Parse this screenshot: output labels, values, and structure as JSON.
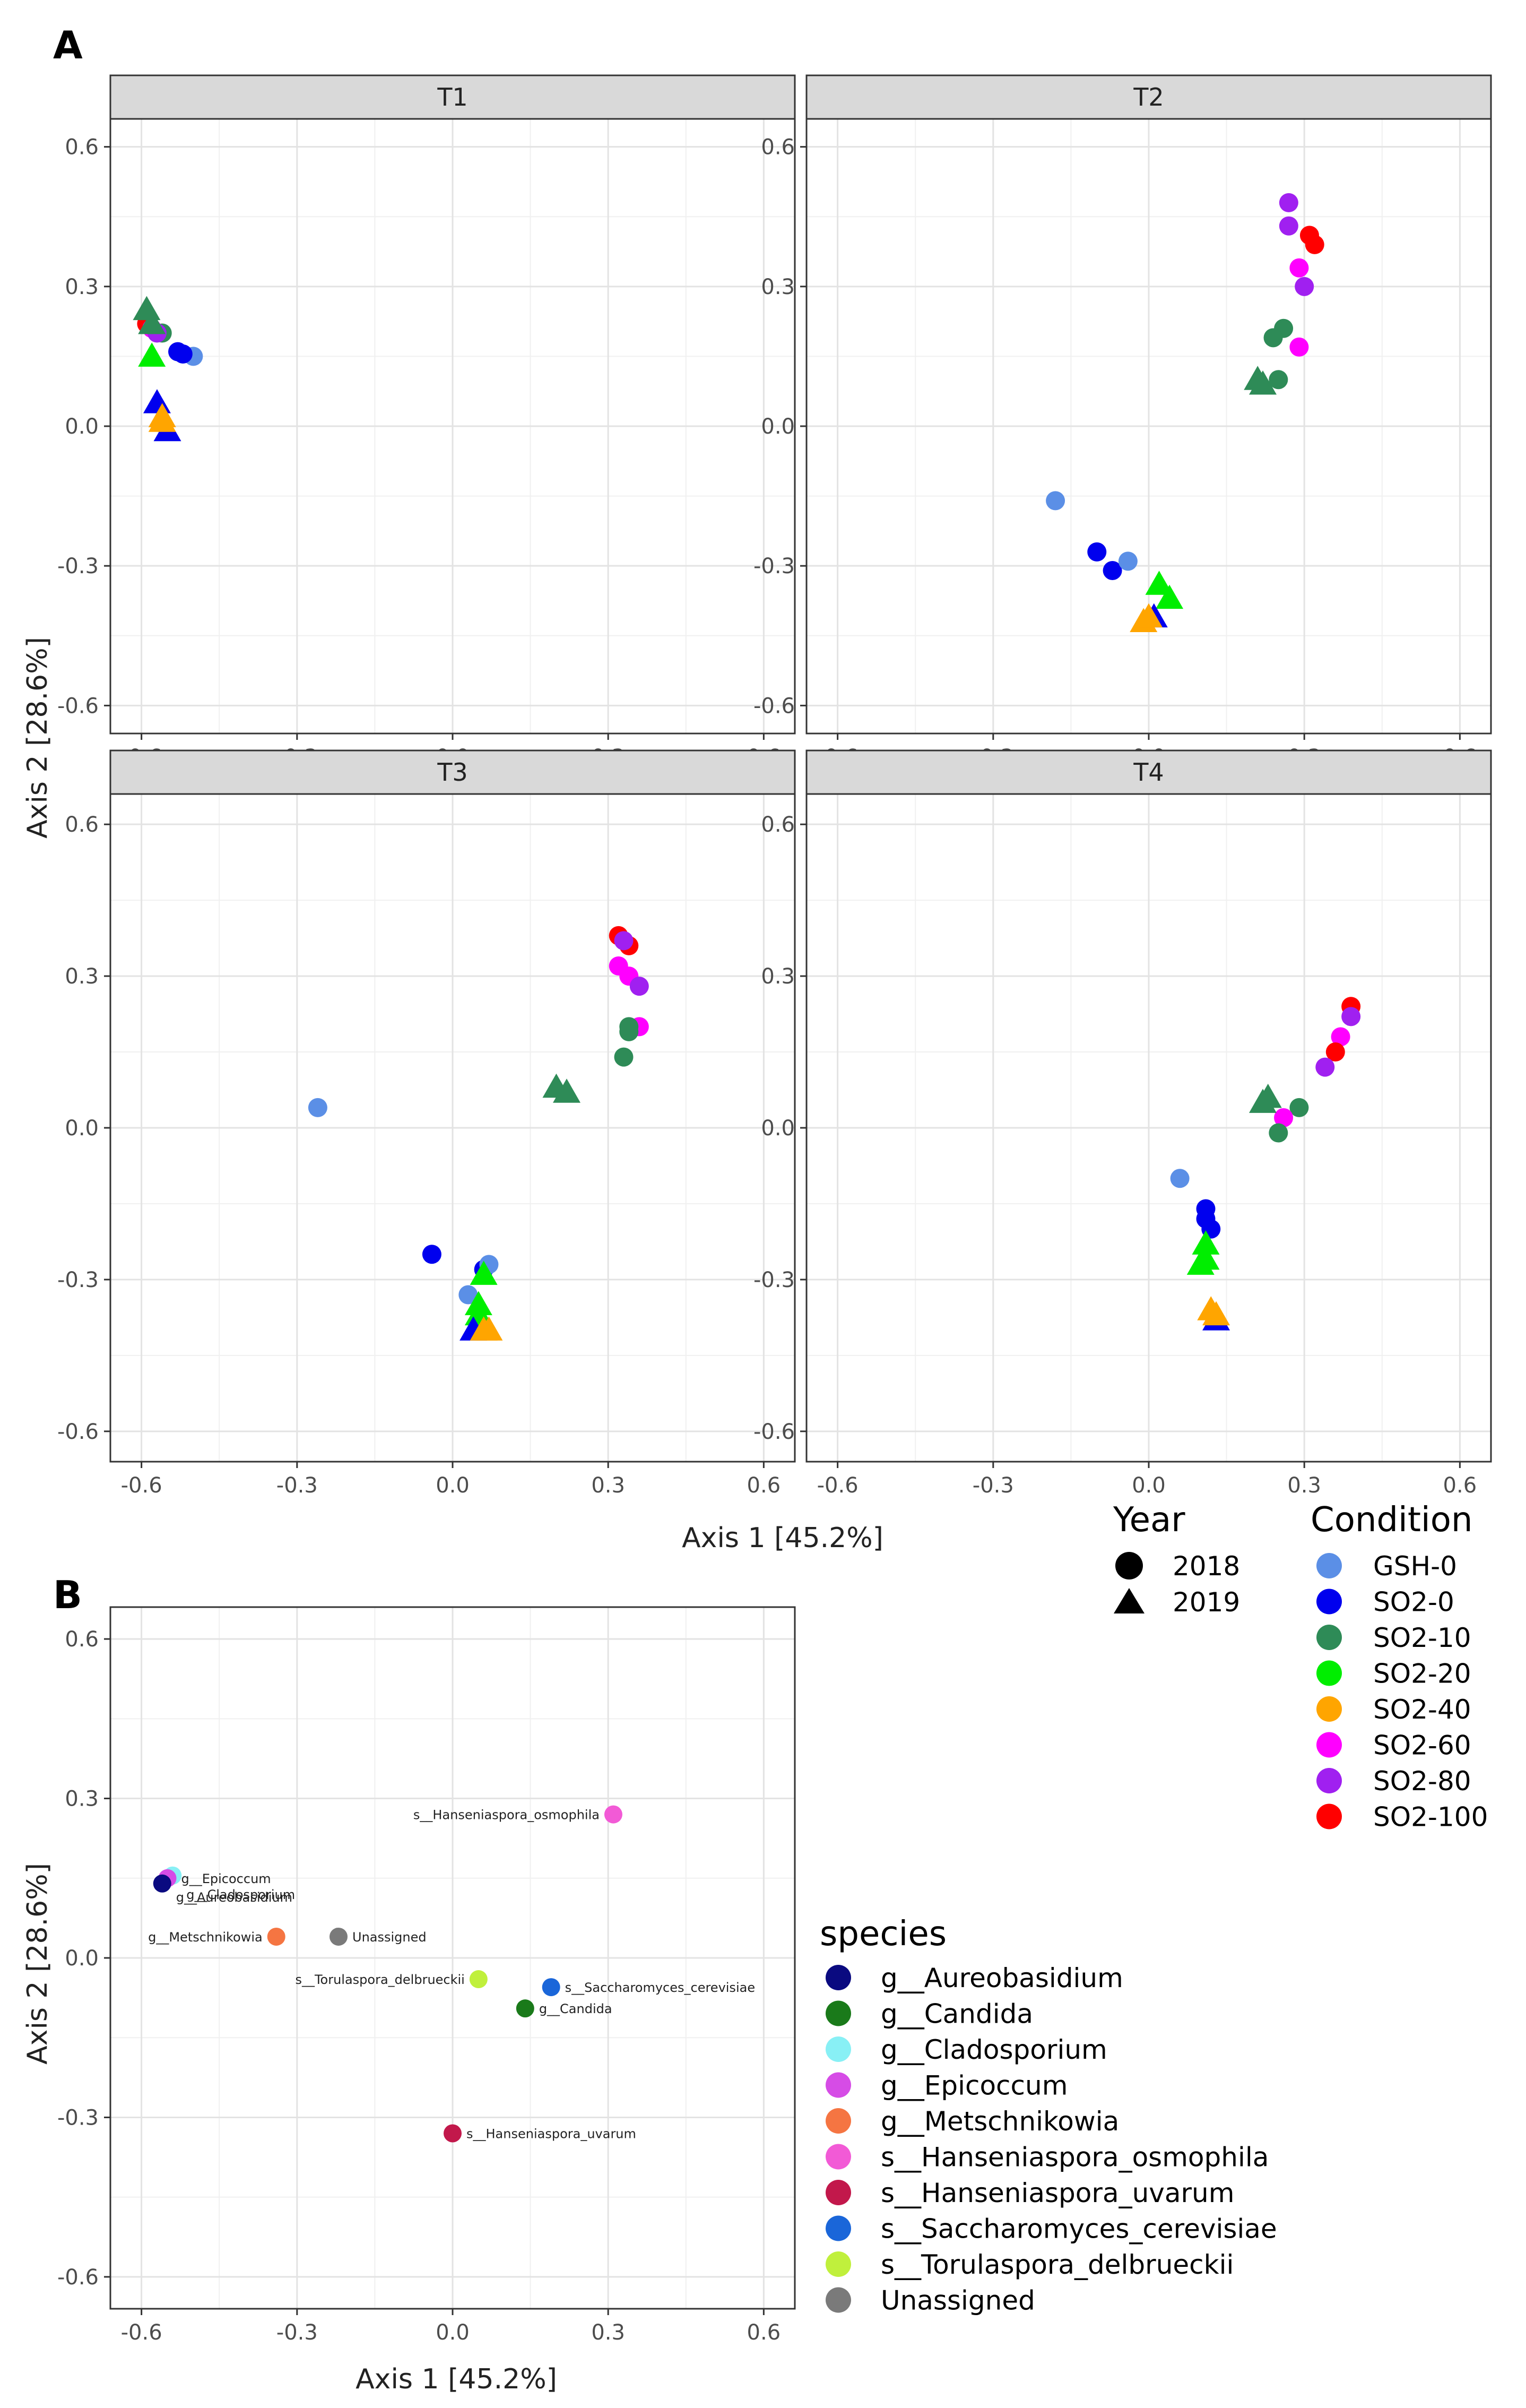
{
  "figure": {
    "panel_a_label": "A",
    "panel_b_label": "B"
  },
  "legends": {
    "year": {
      "title": "Year",
      "items": [
        {
          "label": "2018",
          "shape": "circle"
        },
        {
          "label": "2019",
          "shape": "triangle"
        }
      ]
    },
    "condition": {
      "title": "Condition",
      "items": [
        {
          "label": "GSH-0",
          "color": "#5b8fe6"
        },
        {
          "label": "SO2-0",
          "color": "#0000ee"
        },
        {
          "label": "SO2-10",
          "color": "#2e8b57"
        },
        {
          "label": "SO2-20",
          "color": "#00ee00"
        },
        {
          "label": "SO2-40",
          "color": "#ffa500"
        },
        {
          "label": "SO2-60",
          "color": "#ff00ff"
        },
        {
          "label": "SO2-80",
          "color": "#a020f0"
        },
        {
          "label": "SO2-100",
          "color": "#ff0000"
        }
      ]
    },
    "species": {
      "title": "species",
      "items": [
        {
          "label": "g__Aureobasidium",
          "color": "#0a0a80"
        },
        {
          "label": "g__Candida",
          "color": "#1a7a1a"
        },
        {
          "label": "g__Cladosporium",
          "color": "#88f0f5"
        },
        {
          "label": "g__Epicoccum",
          "color": "#d64ce6"
        },
        {
          "label": "g__Metschnikowia",
          "color": "#f57542"
        },
        {
          "label": "s__Hanseniaspora_osmophila",
          "color": "#f25ad6"
        },
        {
          "label": "s__Hanseniaspora_uvarum",
          "color": "#c2184b"
        },
        {
          "label": "s__Saccharomyces_cerevisiae",
          "color": "#1a66d9"
        },
        {
          "label": "s__Torulaspora_delbrueckii",
          "color": "#c0f03c"
        },
        {
          "label": "Unassigned",
          "color": "#7a7a7a"
        }
      ]
    }
  },
  "chart_data": [
    {
      "type": "scatter",
      "facet": "T1",
      "xlabel": "Axis 1 [45.2%]",
      "ylabel": "Axis 2 [28.6%]",
      "xlim": [
        -0.66,
        0.66
      ],
      "ylim": [
        -0.66,
        0.66
      ],
      "xticks": [
        "-0.6",
        "-0.3",
        "0.0",
        "0.3",
        "0.6"
      ],
      "yticks": [
        "0.6",
        "0.3",
        "0.0",
        "-0.3",
        "-0.6"
      ],
      "points": [
        {
          "x": -0.5,
          "y": 0.15,
          "condition": "GSH-0",
          "year": "2018"
        },
        {
          "x": -0.53,
          "y": 0.16,
          "condition": "SO2-0",
          "year": "2018"
        },
        {
          "x": -0.52,
          "y": 0.155,
          "condition": "SO2-0",
          "year": "2018"
        },
        {
          "x": -0.56,
          "y": 0.2,
          "condition": "SO2-10",
          "year": "2018"
        },
        {
          "x": -0.59,
          "y": 0.22,
          "condition": "SO2-100",
          "year": "2018"
        },
        {
          "x": -0.58,
          "y": 0.21,
          "condition": "SO2-60",
          "year": "2018"
        },
        {
          "x": -0.57,
          "y": 0.2,
          "condition": "SO2-80",
          "year": "2018"
        },
        {
          "x": -0.59,
          "y": 0.25,
          "condition": "SO2-10",
          "year": "2019"
        },
        {
          "x": -0.58,
          "y": 0.22,
          "condition": "SO2-10",
          "year": "2019"
        },
        {
          "x": -0.58,
          "y": 0.15,
          "condition": "SO2-20",
          "year": "2019"
        },
        {
          "x": -0.57,
          "y": 0.05,
          "condition": "SO2-0",
          "year": "2019"
        },
        {
          "x": -0.55,
          "y": -0.01,
          "condition": "SO2-0",
          "year": "2019"
        },
        {
          "x": -0.56,
          "y": 0.02,
          "condition": "SO2-40",
          "year": "2019"
        },
        {
          "x": -0.56,
          "y": 0.01,
          "condition": "SO2-40",
          "year": "2019"
        }
      ]
    },
    {
      "type": "scatter",
      "facet": "T2",
      "xlabel": "Axis 1 [45.2%]",
      "ylabel": "Axis 2 [28.6%]",
      "xlim": [
        -0.66,
        0.66
      ],
      "ylim": [
        -0.66,
        0.66
      ],
      "xticks": [
        "-0.6",
        "-0.3",
        "0.0",
        "0.3",
        "0.6"
      ],
      "yticks": [
        "0.6",
        "0.3",
        "0.0",
        "-0.3",
        "-0.6"
      ],
      "points": [
        {
          "x": 0.27,
          "y": 0.48,
          "condition": "SO2-80",
          "year": "2018"
        },
        {
          "x": 0.27,
          "y": 0.43,
          "condition": "SO2-80",
          "year": "2018"
        },
        {
          "x": 0.31,
          "y": 0.41,
          "condition": "SO2-100",
          "year": "2018"
        },
        {
          "x": 0.32,
          "y": 0.39,
          "condition": "SO2-100",
          "year": "2018"
        },
        {
          "x": 0.29,
          "y": 0.34,
          "condition": "SO2-60",
          "year": "2018"
        },
        {
          "x": 0.3,
          "y": 0.3,
          "condition": "SO2-80",
          "year": "2018"
        },
        {
          "x": 0.29,
          "y": 0.17,
          "condition": "SO2-60",
          "year": "2018"
        },
        {
          "x": 0.26,
          "y": 0.21,
          "condition": "SO2-10",
          "year": "2018"
        },
        {
          "x": 0.24,
          "y": 0.19,
          "condition": "SO2-10",
          "year": "2018"
        },
        {
          "x": 0.25,
          "y": 0.1,
          "condition": "SO2-10",
          "year": "2018"
        },
        {
          "x": 0.21,
          "y": 0.1,
          "condition": "SO2-10",
          "year": "2019"
        },
        {
          "x": 0.22,
          "y": 0.09,
          "condition": "SO2-10",
          "year": "2019"
        },
        {
          "x": -0.18,
          "y": -0.16,
          "condition": "GSH-0",
          "year": "2018"
        },
        {
          "x": -0.1,
          "y": -0.27,
          "condition": "SO2-0",
          "year": "2018"
        },
        {
          "x": -0.07,
          "y": -0.31,
          "condition": "SO2-0",
          "year": "2018"
        },
        {
          "x": -0.04,
          "y": -0.29,
          "condition": "GSH-0",
          "year": "2018"
        },
        {
          "x": 0.02,
          "y": -0.34,
          "condition": "SO2-20",
          "year": "2019"
        },
        {
          "x": 0.04,
          "y": -0.37,
          "condition": "SO2-20",
          "year": "2019"
        },
        {
          "x": 0.01,
          "y": -0.41,
          "condition": "SO2-0",
          "year": "2019"
        },
        {
          "x": -0.01,
          "y": -0.42,
          "condition": "SO2-40",
          "year": "2019"
        },
        {
          "x": 0.0,
          "y": -0.41,
          "condition": "SO2-40",
          "year": "2019"
        }
      ]
    },
    {
      "type": "scatter",
      "facet": "T3",
      "xlabel": "Axis 1 [45.2%]",
      "ylabel": "Axis 2 [28.6%]",
      "xlim": [
        -0.66,
        0.66
      ],
      "ylim": [
        -0.66,
        0.66
      ],
      "xticks": [
        "-0.6",
        "-0.3",
        "0.0",
        "0.3",
        "0.6"
      ],
      "yticks": [
        "0.6",
        "0.3",
        "0.0",
        "-0.3",
        "-0.6"
      ],
      "points": [
        {
          "x": -0.26,
          "y": 0.04,
          "condition": "GSH-0",
          "year": "2018"
        },
        {
          "x": 0.32,
          "y": 0.38,
          "condition": "SO2-100",
          "year": "2018"
        },
        {
          "x": 0.34,
          "y": 0.36,
          "condition": "SO2-100",
          "year": "2018"
        },
        {
          "x": 0.33,
          "y": 0.37,
          "condition": "SO2-80",
          "year": "2018"
        },
        {
          "x": 0.32,
          "y": 0.32,
          "condition": "SO2-60",
          "year": "2018"
        },
        {
          "x": 0.34,
          "y": 0.3,
          "condition": "SO2-60",
          "year": "2018"
        },
        {
          "x": 0.36,
          "y": 0.28,
          "condition": "SO2-80",
          "year": "2018"
        },
        {
          "x": 0.36,
          "y": 0.2,
          "condition": "SO2-60",
          "year": "2018"
        },
        {
          "x": 0.34,
          "y": 0.19,
          "condition": "SO2-10",
          "year": "2018"
        },
        {
          "x": 0.34,
          "y": 0.2,
          "condition": "SO2-10",
          "year": "2018"
        },
        {
          "x": 0.33,
          "y": 0.14,
          "condition": "SO2-10",
          "year": "2018"
        },
        {
          "x": 0.2,
          "y": 0.08,
          "condition": "SO2-10",
          "year": "2019"
        },
        {
          "x": 0.22,
          "y": 0.07,
          "condition": "SO2-10",
          "year": "2019"
        },
        {
          "x": -0.04,
          "y": -0.25,
          "condition": "SO2-0",
          "year": "2018"
        },
        {
          "x": 0.06,
          "y": -0.28,
          "condition": "SO2-0",
          "year": "2018"
        },
        {
          "x": 0.07,
          "y": -0.27,
          "condition": "GSH-0",
          "year": "2018"
        },
        {
          "x": 0.03,
          "y": -0.33,
          "condition": "GSH-0",
          "year": "2018"
        },
        {
          "x": 0.06,
          "y": -0.29,
          "condition": "SO2-20",
          "year": "2019"
        },
        {
          "x": 0.05,
          "y": -0.35,
          "condition": "SO2-20",
          "year": "2019"
        },
        {
          "x": 0.05,
          "y": -0.37,
          "condition": "SO2-20",
          "year": "2019"
        },
        {
          "x": 0.04,
          "y": -0.4,
          "condition": "SO2-0",
          "year": "2019"
        },
        {
          "x": 0.07,
          "y": -0.4,
          "condition": "SO2-40",
          "year": "2019"
        },
        {
          "x": 0.06,
          "y": -0.4,
          "condition": "SO2-40",
          "year": "2019"
        }
      ]
    },
    {
      "type": "scatter",
      "facet": "T4",
      "xlabel": "Axis 1 [45.2%]",
      "ylabel": "Axis 2 [28.6%]",
      "xlim": [
        -0.66,
        0.66
      ],
      "ylim": [
        -0.66,
        0.66
      ],
      "xticks": [
        "-0.6",
        "-0.3",
        "0.0",
        "0.3",
        "0.6"
      ],
      "yticks": [
        "0.6",
        "0.3",
        "0.0",
        "-0.3",
        "-0.6"
      ],
      "points": [
        {
          "x": 0.39,
          "y": 0.24,
          "condition": "SO2-100",
          "year": "2018"
        },
        {
          "x": 0.39,
          "y": 0.22,
          "condition": "SO2-80",
          "year": "2018"
        },
        {
          "x": 0.37,
          "y": 0.18,
          "condition": "SO2-60",
          "year": "2018"
        },
        {
          "x": 0.36,
          "y": 0.15,
          "condition": "SO2-100",
          "year": "2018"
        },
        {
          "x": 0.34,
          "y": 0.12,
          "condition": "SO2-80",
          "year": "2018"
        },
        {
          "x": 0.29,
          "y": 0.04,
          "condition": "SO2-10",
          "year": "2018"
        },
        {
          "x": 0.26,
          "y": 0.02,
          "condition": "SO2-60",
          "year": "2018"
        },
        {
          "x": 0.25,
          "y": -0.01,
          "condition": "SO2-10",
          "year": "2018"
        },
        {
          "x": 0.23,
          "y": 0.06,
          "condition": "SO2-10",
          "year": "2019"
        },
        {
          "x": 0.22,
          "y": 0.05,
          "condition": "SO2-10",
          "year": "2019"
        },
        {
          "x": 0.06,
          "y": -0.1,
          "condition": "GSH-0",
          "year": "2018"
        },
        {
          "x": 0.11,
          "y": -0.16,
          "condition": "SO2-0",
          "year": "2018"
        },
        {
          "x": 0.12,
          "y": -0.2,
          "condition": "SO2-0",
          "year": "2018"
        },
        {
          "x": 0.11,
          "y": -0.18,
          "condition": "SO2-0",
          "year": "2018"
        },
        {
          "x": 0.11,
          "y": -0.23,
          "condition": "SO2-20",
          "year": "2019"
        },
        {
          "x": 0.11,
          "y": -0.26,
          "condition": "SO2-20",
          "year": "2019"
        },
        {
          "x": 0.1,
          "y": -0.27,
          "condition": "SO2-20",
          "year": "2019"
        },
        {
          "x": 0.13,
          "y": -0.38,
          "condition": "SO2-0",
          "year": "2019"
        },
        {
          "x": 0.13,
          "y": -0.37,
          "condition": "SO2-40",
          "year": "2019"
        },
        {
          "x": 0.12,
          "y": -0.36,
          "condition": "SO2-40",
          "year": "2019"
        }
      ]
    },
    {
      "type": "scatter",
      "facet": "B",
      "xlabel": "Axis 1 [45.2%]",
      "ylabel": "Axis 2 [28.6%]",
      "xlim": [
        -0.66,
        0.66
      ],
      "ylim": [
        -0.66,
        0.66
      ],
      "xticks": [
        "-0.6",
        "-0.3",
        "0.0",
        "0.3",
        "0.6"
      ],
      "yticks": [
        "0.6",
        "0.3",
        "0.0",
        "-0.3",
        "-0.6"
      ],
      "points": [
        {
          "x": 0.31,
          "y": 0.27,
          "species": "s__Hanseniaspora_osmophila",
          "label": "s__Hanseniaspora_osmophila",
          "anchor": "end"
        },
        {
          "x": -0.54,
          "y": 0.155,
          "species": "g__Cladosporium",
          "label": "g__Cladosporium",
          "anchor": "start",
          "label_dy": -0.035
        },
        {
          "x": -0.55,
          "y": 0.15,
          "species": "g__Epicoccum",
          "label": "g__Epicoccum",
          "anchor": "start",
          "label_dy": 0.0
        },
        {
          "x": -0.56,
          "y": 0.14,
          "species": "g__Aureobasidium",
          "label": "g__Aureobasidium",
          "anchor": "start",
          "label_dy": -0.025
        },
        {
          "x": -0.34,
          "y": 0.04,
          "species": "g__Metschnikowia",
          "label": "g__Metschnikowia",
          "anchor": "end"
        },
        {
          "x": -0.22,
          "y": 0.04,
          "species": "Unassigned",
          "label": "Unassigned",
          "anchor": "start"
        },
        {
          "x": 0.05,
          "y": -0.04,
          "species": "s__Torulaspora_delbrueckii",
          "label": "s__Torulaspora_delbrueckii",
          "anchor": "end"
        },
        {
          "x": 0.19,
          "y": -0.055,
          "species": "s__Saccharomyces_cerevisiae",
          "label": "s__Saccharomyces_cerevisiae",
          "anchor": "start"
        },
        {
          "x": 0.14,
          "y": -0.095,
          "species": "g__Candida",
          "label": "g__Candida",
          "anchor": "start"
        },
        {
          "x": 0.0,
          "y": -0.33,
          "species": "s__Hanseniaspora_uvarum",
          "label": "s__Hanseniaspora_uvarum",
          "anchor": "start"
        }
      ]
    }
  ]
}
